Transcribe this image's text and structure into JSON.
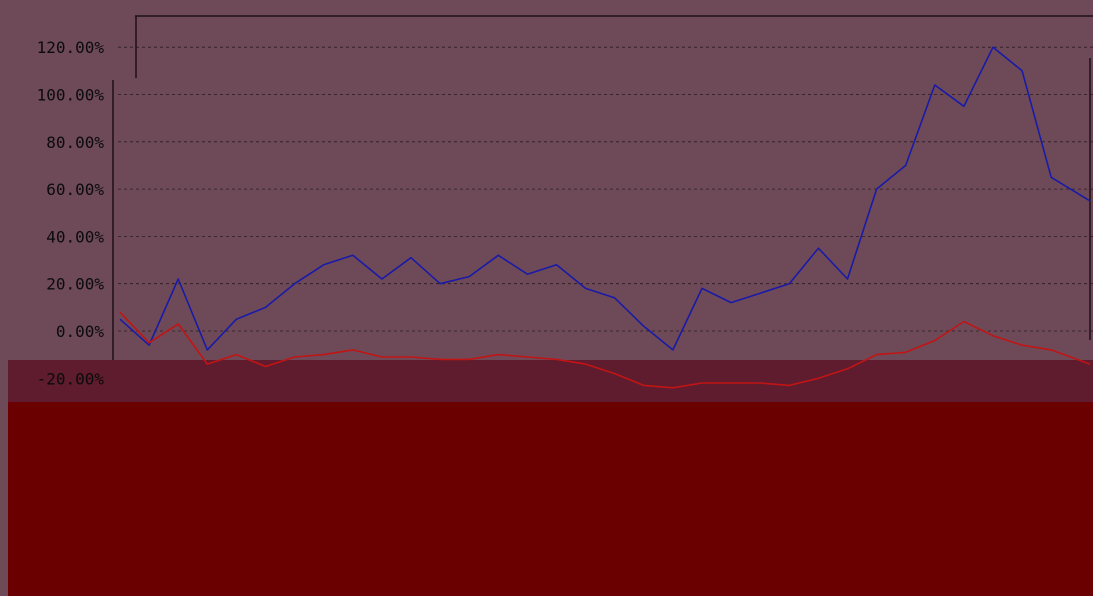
{
  "colors": {
    "background": "#6e4a58",
    "lower_band": "#6b0000",
    "mid_band": "#5e1c2e",
    "grid": "#2a1a20",
    "blue_series": "#1a1aa8",
    "red_series": "#c21414"
  },
  "chart_data": {
    "type": "line",
    "title": "",
    "xlabel": "",
    "ylabel": "",
    "ylim": [
      -22,
      125
    ],
    "ytick_values": [
      120,
      100,
      80,
      60,
      40,
      20,
      0,
      -20
    ],
    "ytick_labels": [
      "120.00%",
      "100.00%",
      "80.00%",
      "60.00%",
      "40.00%",
      "20.00%",
      "0.00%",
      "-20.00%"
    ],
    "grid": "horizontal dashed",
    "legend": "none",
    "x": [
      0,
      3,
      6,
      9,
      12,
      15,
      18,
      21,
      24,
      27,
      30,
      33,
      36,
      39,
      42,
      45,
      48,
      51,
      54,
      57,
      60,
      63,
      66,
      69,
      72,
      75,
      78,
      81,
      84,
      87,
      90,
      93,
      96,
      100
    ],
    "series": [
      {
        "values": [
          5,
          -6,
          22,
          -8,
          5,
          10,
          20,
          28,
          32,
          22,
          31,
          20,
          23,
          32,
          24,
          28,
          18,
          14,
          2,
          -8,
          18,
          12,
          16,
          20,
          35,
          22,
          60,
          70,
          104,
          95,
          120,
          110,
          65,
          55
        ]
      },
      {
        "values": [
          8,
          -5,
          3,
          -14,
          -10,
          -15,
          -11,
          -10,
          -8,
          -11,
          -11,
          -12,
          -12,
          -10,
          -11,
          -12,
          -14,
          -18,
          -23,
          -24,
          -22,
          -22,
          -22,
          -23,
          -20,
          -16,
          -10,
          -9,
          -4,
          4,
          -2,
          -6,
          -8,
          -14
        ]
      }
    ]
  }
}
